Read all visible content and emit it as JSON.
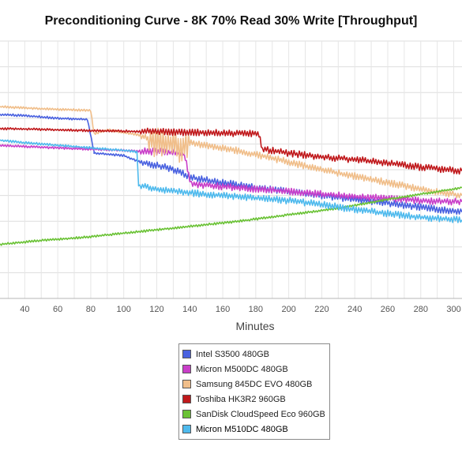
{
  "chart_data": {
    "type": "line",
    "title": "Preconditioning Curve - 8K 70% Read 30% Write [Throughput]",
    "xlabel": "Minutes",
    "ylabel": "",
    "xlim": [
      25,
      305
    ],
    "ylim": [
      0,
      10
    ],
    "xticks": [
      40,
      60,
      80,
      100,
      120,
      140,
      160,
      180,
      200,
      220,
      240,
      260,
      280,
      300
    ],
    "grid": true,
    "legend_position": "bottom",
    "series": [
      {
        "name": "Intel S3500 480GB",
        "color": "#4a62e0",
        "points": [
          [
            25,
            7.15
          ],
          [
            40,
            7.1
          ],
          [
            60,
            7.0
          ],
          [
            78,
            6.95
          ],
          [
            82,
            5.7
          ],
          [
            82,
            5.65
          ],
          [
            100,
            5.55
          ],
          [
            110,
            5.3
          ],
          [
            125,
            5.1
          ],
          [
            135,
            4.9
          ],
          [
            140,
            4.7
          ],
          [
            160,
            4.5
          ],
          [
            180,
            4.3
          ],
          [
            200,
            4.15
          ],
          [
            220,
            4.0
          ],
          [
            240,
            3.85
          ],
          [
            260,
            3.7
          ],
          [
            280,
            3.55
          ],
          [
            305,
            3.35
          ]
        ]
      },
      {
        "name": "Micron M500DC 480GB",
        "color": "#c93fc9",
        "points": [
          [
            25,
            5.95
          ],
          [
            40,
            5.9
          ],
          [
            60,
            5.85
          ],
          [
            80,
            5.8
          ],
          [
            100,
            5.75
          ],
          [
            120,
            5.7
          ],
          [
            136,
            5.65
          ],
          [
            138,
            5.3
          ],
          [
            140,
            4.6
          ],
          [
            141,
            4.45
          ],
          [
            160,
            4.35
          ],
          [
            180,
            4.25
          ],
          [
            200,
            4.15
          ],
          [
            220,
            4.05
          ],
          [
            240,
            3.95
          ],
          [
            260,
            3.9
          ],
          [
            280,
            3.8
          ],
          [
            305,
            3.75
          ]
        ]
      },
      {
        "name": "Samsung 845DC EVO 480GB",
        "color": "#f0be8a",
        "points": [
          [
            25,
            7.45
          ],
          [
            40,
            7.4
          ],
          [
            60,
            7.35
          ],
          [
            80,
            7.3
          ],
          [
            82,
            6.4
          ],
          [
            90,
            6.55
          ],
          [
            100,
            6.45
          ],
          [
            110,
            6.35
          ],
          [
            120,
            6.05
          ],
          [
            130,
            6.0
          ],
          [
            136,
            5.8
          ],
          [
            140,
            6.05
          ],
          [
            160,
            5.85
          ],
          [
            180,
            5.6
          ],
          [
            200,
            5.3
          ],
          [
            220,
            5.0
          ],
          [
            240,
            4.75
          ],
          [
            260,
            4.5
          ],
          [
            280,
            4.25
          ],
          [
            305,
            4.0
          ]
        ]
      },
      {
        "name": "Toshiba HK3R2 960GB",
        "color": "#c0191c",
        "points": [
          [
            25,
            6.6
          ],
          [
            40,
            6.58
          ],
          [
            60,
            6.55
          ],
          [
            80,
            6.52
          ],
          [
            100,
            6.5
          ],
          [
            120,
            6.48
          ],
          [
            140,
            6.45
          ],
          [
            160,
            6.42
          ],
          [
            182,
            6.4
          ],
          [
            184,
            5.8
          ],
          [
            200,
            5.65
          ],
          [
            220,
            5.5
          ],
          [
            240,
            5.4
          ],
          [
            260,
            5.25
          ],
          [
            280,
            5.1
          ],
          [
            305,
            4.95
          ]
        ]
      },
      {
        "name": "SanDisk CloudSpeed Eco 960GB",
        "color": "#6ac235",
        "points": [
          [
            25,
            2.1
          ],
          [
            50,
            2.25
          ],
          [
            80,
            2.4
          ],
          [
            110,
            2.6
          ],
          [
            140,
            2.8
          ],
          [
            170,
            3.0
          ],
          [
            200,
            3.25
          ],
          [
            230,
            3.5
          ],
          [
            260,
            3.85
          ],
          [
            280,
            4.05
          ],
          [
            305,
            4.3
          ]
        ]
      },
      {
        "name": "Micron M510DC 480GB",
        "color": "#4fbaed",
        "points": [
          [
            25,
            6.15
          ],
          [
            40,
            6.05
          ],
          [
            60,
            5.95
          ],
          [
            80,
            5.85
          ],
          [
            100,
            5.75
          ],
          [
            108,
            5.7
          ],
          [
            109,
            4.4
          ],
          [
            120,
            4.25
          ],
          [
            140,
            4.1
          ],
          [
            160,
            4.0
          ],
          [
            180,
            3.9
          ],
          [
            200,
            3.8
          ],
          [
            220,
            3.65
          ],
          [
            240,
            3.45
          ],
          [
            260,
            3.3
          ],
          [
            280,
            3.15
          ],
          [
            305,
            3.05
          ]
        ]
      }
    ]
  }
}
